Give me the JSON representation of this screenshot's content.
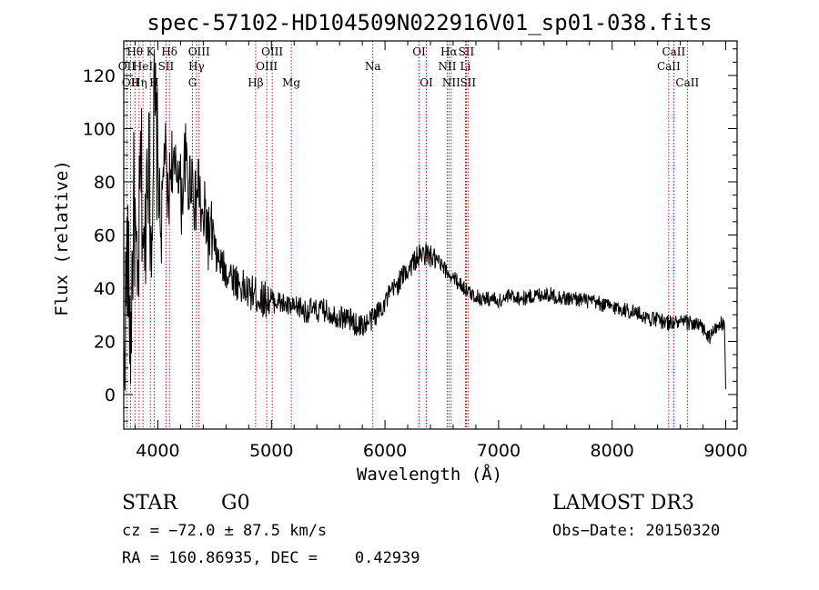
{
  "chart_data": {
    "type": "line",
    "title": "spec-57102-HD104509N022916V01_sp01-038.fits",
    "xlabel": "Wavelength (Å)",
    "ylabel": "Flux (relative)",
    "xlim": [
      3700,
      9100
    ],
    "ylim": [
      -13,
      133
    ],
    "xticks": [
      4000,
      5000,
      6000,
      7000,
      8000,
      9000
    ],
    "yticks": [
      0,
      20,
      40,
      60,
      80,
      100,
      120
    ],
    "series": [
      {
        "name": "flux",
        "x": [
          3700,
          3730,
          3760,
          3790,
          3820,
          3850,
          3880,
          3910,
          3940,
          3970,
          4000,
          4030,
          4060,
          4090,
          4120,
          4150,
          4180,
          4210,
          4240,
          4270,
          4300,
          4330,
          4360,
          4390,
          4420,
          4450,
          4480,
          4510,
          4540,
          4570,
          4600,
          4650,
          4700,
          4750,
          4800,
          4850,
          4900,
          4950,
          5000,
          5050,
          5100,
          5150,
          5200,
          5250,
          5300,
          5350,
          5400,
          5450,
          5500,
          5550,
          5600,
          5650,
          5700,
          5750,
          5800,
          5850,
          5900,
          5950,
          6000,
          6050,
          6100,
          6150,
          6200,
          6250,
          6300,
          6350,
          6400,
          6450,
          6500,
          6550,
          6600,
          6650,
          6700,
          6750,
          6800,
          6850,
          6900,
          6950,
          7000,
          7050,
          7100,
          7150,
          7200,
          7300,
          7400,
          7500,
          7600,
          7700,
          7800,
          7900,
          8000,
          8100,
          8200,
          8300,
          8400,
          8500,
          8600,
          8700,
          8800,
          8850,
          8900,
          8950,
          8990,
          9000
        ],
        "values": [
          8,
          55,
          20,
          75,
          30,
          90,
          45,
          100,
          60,
          110,
          85,
          60,
          95,
          70,
          90,
          80,
          88,
          72,
          90,
          78,
          85,
          70,
          80,
          62,
          68,
          58,
          60,
          52,
          50,
          48,
          46,
          45,
          42,
          40,
          38,
          38,
          36,
          36,
          35,
          35,
          34,
          33,
          32,
          33,
          31,
          32,
          31,
          32,
          31,
          30,
          29,
          29,
          28,
          26,
          26,
          27,
          29,
          32,
          35,
          38,
          41,
          44,
          47,
          50,
          52,
          53,
          52,
          50,
          48,
          46,
          44,
          42,
          40,
          38,
          37,
          36,
          36,
          36,
          35,
          36,
          37,
          37,
          36,
          37,
          38,
          37,
          36,
          36,
          35,
          34,
          33,
          32,
          31,
          29,
          28,
          27,
          27,
          27,
          25,
          21,
          24,
          27,
          25,
          2
        ]
      }
    ],
    "lines": [
      {
        "wl": 3727,
        "label": "OII",
        "row": 2
      },
      {
        "wl": 3760,
        "label": "OII",
        "row": 3
      },
      {
        "wl": 3798,
        "label": "Hθ",
        "row": 1
      },
      {
        "wl": 3835,
        "label": "Hη",
        "row": 3
      },
      {
        "wl": 3869,
        "label": "HeI",
        "row": 2
      },
      {
        "wl": 3934,
        "label": "K",
        "row": 1
      },
      {
        "wl": 3968,
        "label": "H",
        "row": 3
      },
      {
        "wl": 4072,
        "label": "SII",
        "row": 2
      },
      {
        "wl": 4102,
        "label": "Hδ",
        "row": 1
      },
      {
        "wl": 4305,
        "label": "G",
        "row": 3
      },
      {
        "wl": 4340,
        "label": "Hγ",
        "row": 2
      },
      {
        "wl": 4363,
        "label": "OIII",
        "row": 1
      },
      {
        "wl": 4861,
        "label": "Hβ",
        "row": 3
      },
      {
        "wl": 4959,
        "label": "OIII",
        "row": 2
      },
      {
        "wl": 5007,
        "label": "OIII",
        "row": 1
      },
      {
        "wl": 5175,
        "label": "Mg",
        "row": 3
      },
      {
        "wl": 5893,
        "label": "Na",
        "row": 2
      },
      {
        "wl": 6300,
        "label": "OI",
        "row": 1
      },
      {
        "wl": 6364,
        "label": "OI",
        "row": 3
      },
      {
        "wl": 6548,
        "label": "NII",
        "row": 2
      },
      {
        "wl": 6563,
        "label": "Hα",
        "row": 1
      },
      {
        "wl": 6583,
        "label": "NII",
        "row": 3
      },
      {
        "wl": 6708,
        "label": "Li",
        "row": 2
      },
      {
        "wl": 6716,
        "label": "SII",
        "row": 1
      },
      {
        "wl": 6731,
        "label": "SII",
        "row": 3
      },
      {
        "wl": 8498,
        "label": "CaII",
        "row": 2
      },
      {
        "wl": 8542,
        "label": "CaII",
        "row": 1
      },
      {
        "wl": 8662,
        "label": "CaII",
        "row": 3
      }
    ]
  },
  "info": {
    "class": "STAR",
    "subclass": "G0",
    "survey": "LAMOST DR3",
    "cz": "cz = −72.0 ± 87.5 km/s",
    "obs_date": "Obs−Date: 20150320",
    "radec": "RA = 160.86935, DEC =    0.42939"
  },
  "colors": {
    "line_marker": "#b00000",
    "spectrum": "#000000",
    "axes": "#000000"
  }
}
